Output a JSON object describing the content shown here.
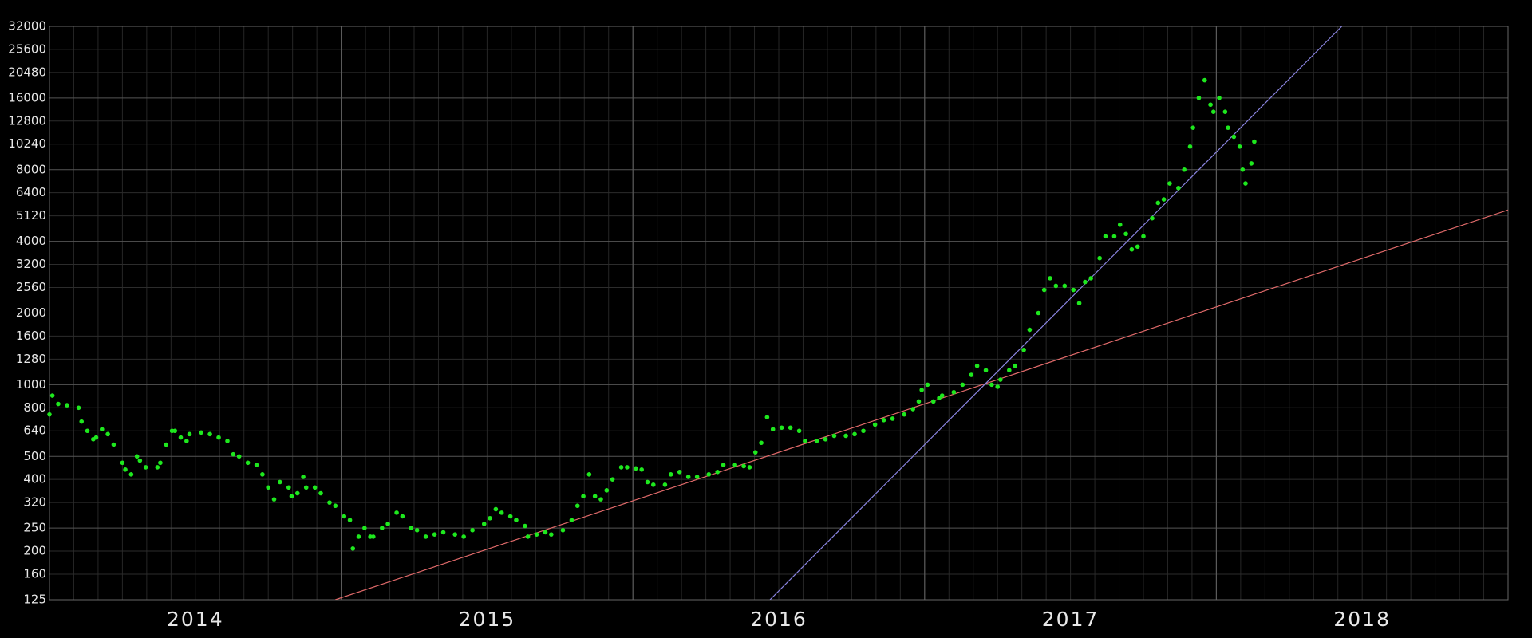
{
  "chart_data": {
    "type": "scatter",
    "yscale": "log",
    "grid": true,
    "xlim": [
      2014,
      2019
    ],
    "ylim": [
      125,
      32000
    ],
    "xgrid": [
      2015,
      2016,
      2017,
      2018
    ],
    "xticks": [
      {
        "value": 2014.5,
        "label": "2014"
      },
      {
        "value": 2015.5,
        "label": "2015"
      },
      {
        "value": 2016.5,
        "label": "2016"
      },
      {
        "value": 2017.5,
        "label": "2017"
      },
      {
        "value": 2018.5,
        "label": "2018"
      }
    ],
    "yticks": [
      125,
      160,
      200,
      250,
      320,
      400,
      500,
      640,
      800,
      1000,
      1280,
      1600,
      2000,
      2560,
      3200,
      4000,
      5120,
      6400,
      8000,
      10240,
      12800,
      16000,
      20480,
      25600,
      32000
    ],
    "series": [
      {
        "color": "#1ee81e",
        "x": [
          2014.0,
          2014.01,
          2014.03,
          2014.06,
          2014.1,
          2014.11,
          2014.13,
          2014.15,
          2014.16,
          2014.18,
          2014.2,
          2014.22,
          2014.25,
          2014.26,
          2014.28,
          2014.3,
          2014.31,
          2014.33,
          2014.37,
          2014.38,
          2014.4,
          2014.42,
          2014.43,
          2014.45,
          2014.47,
          2014.48,
          2014.52,
          2014.55,
          2014.58,
          2014.61,
          2014.63,
          2014.65,
          2014.68,
          2014.71,
          2014.73,
          2014.75,
          2014.77,
          2014.79,
          2014.82,
          2014.83,
          2014.85,
          2014.87,
          2014.88,
          2014.91,
          2014.93,
          2014.96,
          2014.98,
          2015.01,
          2015.03,
          2015.04,
          2015.06,
          2015.08,
          2015.1,
          2015.11,
          2015.14,
          2015.16,
          2015.19,
          2015.21,
          2015.24,
          2015.26,
          2015.29,
          2015.32,
          2015.35,
          2015.39,
          2015.42,
          2015.45,
          2015.49,
          2015.51,
          2015.53,
          2015.55,
          2015.58,
          2015.6,
          2015.63,
          2015.64,
          2015.67,
          2015.7,
          2015.72,
          2015.76,
          2015.79,
          2015.81,
          2015.83,
          2015.85,
          2015.87,
          2015.89,
          2015.91,
          2015.93,
          2015.96,
          2015.98,
          2016.01,
          2016.03,
          2016.05,
          2016.07,
          2016.11,
          2016.13,
          2016.16,
          2016.19,
          2016.22,
          2016.26,
          2016.29,
          2016.31,
          2016.35,
          2016.38,
          2016.4,
          2016.42,
          2016.44,
          2016.46,
          2016.48,
          2016.51,
          2016.54,
          2016.57,
          2016.59,
          2016.63,
          2016.66,
          2016.69,
          2016.73,
          2016.76,
          2016.79,
          2016.83,
          2016.86,
          2016.89,
          2016.93,
          2016.96,
          2016.98,
          2016.99,
          2017.01,
          2017.03,
          2017.05,
          2017.06,
          2017.1,
          2017.13,
          2017.16,
          2017.18,
          2017.21,
          2017.23,
          2017.25,
          2017.26,
          2017.29,
          2017.31,
          2017.34,
          2017.36,
          2017.39,
          2017.41,
          2017.43,
          2017.45,
          2017.48,
          2017.51,
          2017.53,
          2017.55,
          2017.57,
          2017.6,
          2017.62,
          2017.65,
          2017.67,
          2017.69,
          2017.71,
          2017.73,
          2017.75,
          2017.78,
          2017.8,
          2017.82,
          2017.84,
          2017.87,
          2017.89,
          2017.91,
          2017.92,
          2017.94,
          2017.96,
          2017.98,
          2017.99,
          2018.01,
          2018.03,
          2018.04,
          2018.06,
          2018.08,
          2018.09,
          2018.1,
          2018.12,
          2018.13
        ],
        "values": [
          750,
          900,
          830,
          820,
          800,
          700,
          640,
          590,
          600,
          650,
          620,
          560,
          470,
          440,
          420,
          500,
          480,
          450,
          450,
          470,
          560,
          640,
          640,
          600,
          580,
          620,
          630,
          620,
          600,
          580,
          510,
          500,
          470,
          460,
          420,
          370,
          330,
          390,
          370,
          340,
          350,
          410,
          370,
          370,
          350,
          320,
          310,
          280,
          270,
          205,
          230,
          250,
          230,
          230,
          250,
          260,
          290,
          280,
          250,
          245,
          230,
          235,
          240,
          235,
          230,
          245,
          260,
          275,
          300,
          290,
          280,
          270,
          255,
          230,
          235,
          240,
          235,
          245,
          270,
          310,
          340,
          420,
          340,
          330,
          360,
          400,
          450,
          450,
          445,
          440,
          390,
          380,
          380,
          420,
          430,
          410,
          410,
          420,
          430,
          460,
          460,
          455,
          450,
          520,
          570,
          730,
          650,
          660,
          660,
          640,
          580,
          580,
          590,
          610,
          610,
          620,
          640,
          680,
          710,
          720,
          750,
          790,
          850,
          950,
          1000,
          850,
          880,
          900,
          930,
          1000,
          1100,
          1200,
          1150,
          1000,
          980,
          1050,
          1150,
          1200,
          1400,
          1700,
          2000,
          2500,
          2800,
          2600,
          2600,
          2500,
          2200,
          2700,
          2800,
          3400,
          4200,
          4200,
          4700,
          4300,
          3700,
          3800,
          4200,
          5000,
          5800,
          6000,
          7000,
          6700,
          8000,
          10000,
          12000,
          16000,
          19000,
          15000,
          14000,
          16000,
          14000,
          12000,
          11000,
          10000,
          8000,
          7000,
          8500,
          10500
        ]
      }
    ],
    "lines": [
      {
        "color": "#e06a6a",
        "x": [
          2014.98,
          2019
        ],
        "values": [
          125,
          5419
        ]
      },
      {
        "color": "#8a84e0",
        "x": [
          2016.47,
          2018.43
        ],
        "values": [
          125,
          32000
        ]
      }
    ]
  }
}
